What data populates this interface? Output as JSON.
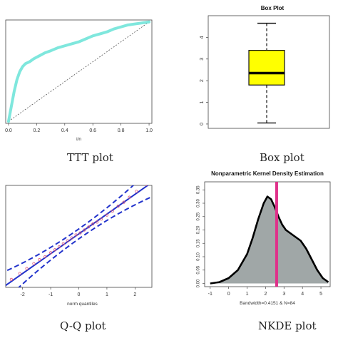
{
  "captions": {
    "ttt": "TTT plot",
    "box": "Box plot",
    "qq": "Q-Q plot",
    "nkde": "NKDE plot"
  },
  "chart_data": [
    {
      "id": "ttt",
      "type": "line",
      "title": "",
      "xlabel": "i/n",
      "ylabel": "",
      "xlim": [
        0,
        1
      ],
      "ylim": [
        0,
        1
      ],
      "xticks": [
        "0.0",
        "0.2",
        "0.4",
        "0.6",
        "0.8",
        "1.0"
      ],
      "series": [
        {
          "x": [
            0,
            0.02,
            0.04,
            0.06,
            0.08,
            0.1,
            0.12,
            0.15,
            0.18,
            0.22,
            0.26,
            0.3,
            0.35,
            0.4,
            0.45,
            0.5,
            0.55,
            0.6,
            0.65,
            0.7,
            0.75,
            0.8,
            0.85,
            0.9,
            0.95,
            1.0
          ],
          "y": [
            0,
            0.15,
            0.3,
            0.42,
            0.5,
            0.55,
            0.58,
            0.6,
            0.63,
            0.66,
            0.69,
            0.71,
            0.74,
            0.76,
            0.78,
            0.8,
            0.83,
            0.86,
            0.88,
            0.9,
            0.93,
            0.95,
            0.97,
            0.98,
            0.99,
            1.0
          ],
          "color": "#7fe7dd"
        }
      ],
      "reference_line": [
        [
          0,
          0
        ],
        [
          1,
          1
        ]
      ]
    },
    {
      "id": "box",
      "type": "box",
      "title": "Box Plot",
      "ylim": [
        0,
        5
      ],
      "yticks": [
        "0",
        "1",
        "2",
        "3",
        "4"
      ],
      "min": 0.05,
      "q1": 1.8,
      "median": 2.35,
      "q3": 3.4,
      "max": 4.65,
      "fill": "#ffff00"
    },
    {
      "id": "qq",
      "type": "scatter",
      "title": "",
      "xlabel": "norm quantiles",
      "ylabel": "",
      "xlim": [
        -2.6,
        2.6
      ],
      "xticks": [
        "-2",
        "-1",
        "0",
        "1",
        "2"
      ],
      "points": {
        "x": [
          -2.4,
          -2.1,
          -1.85,
          -1.6,
          -1.4,
          -1.2,
          -1.0,
          -0.85,
          -0.7,
          -0.55,
          -0.4,
          -0.25,
          -0.1,
          0.05,
          0.2,
          0.35,
          0.5,
          0.65,
          0.8,
          1.0,
          1.2,
          1.4,
          1.6,
          1.8,
          2.05,
          2.4
        ],
        "y": [
          -2.3,
          -2.0,
          -1.75,
          -1.5,
          -1.3,
          -1.15,
          -0.95,
          -0.8,
          -0.65,
          -0.5,
          -0.35,
          -0.2,
          -0.05,
          0.05,
          0.2,
          0.35,
          0.5,
          0.6,
          0.75,
          0.95,
          1.15,
          1.4,
          1.6,
          1.85,
          2.15,
          2.5
        ]
      },
      "point_color": "#e05a7a",
      "line_color": "#2233cc"
    },
    {
      "id": "nkde",
      "type": "area",
      "title": "Nonparametric Kernel Density Estimation",
      "xlabel": "Bandwidth=0.4151 & N=84",
      "xlim": [
        -1.3,
        5.5
      ],
      "ylim": [
        0,
        0.38
      ],
      "xticks": [
        "-1",
        "0",
        "1",
        "2",
        "3",
        "4",
        "5"
      ],
      "yticks": [
        "0.00",
        "0.05",
        "0.10",
        "0.15",
        "0.20",
        "0.25",
        "0.30",
        "0.35"
      ],
      "x": [
        -1.0,
        -0.5,
        0,
        0.5,
        1.0,
        1.3,
        1.6,
        1.9,
        2.1,
        2.3,
        2.5,
        2.7,
        2.9,
        3.1,
        3.3,
        3.6,
        3.9,
        4.2,
        4.5,
        4.8,
        5.1,
        5.4
      ],
      "y": [
        0.0,
        0.005,
        0.02,
        0.05,
        0.11,
        0.17,
        0.24,
        0.3,
        0.325,
        0.315,
        0.285,
        0.25,
        0.22,
        0.2,
        0.19,
        0.175,
        0.16,
        0.13,
        0.09,
        0.05,
        0.02,
        0.005
      ],
      "vline": 2.6,
      "fill": "#a0a7a7",
      "vline_color": "#e0308a"
    }
  ]
}
